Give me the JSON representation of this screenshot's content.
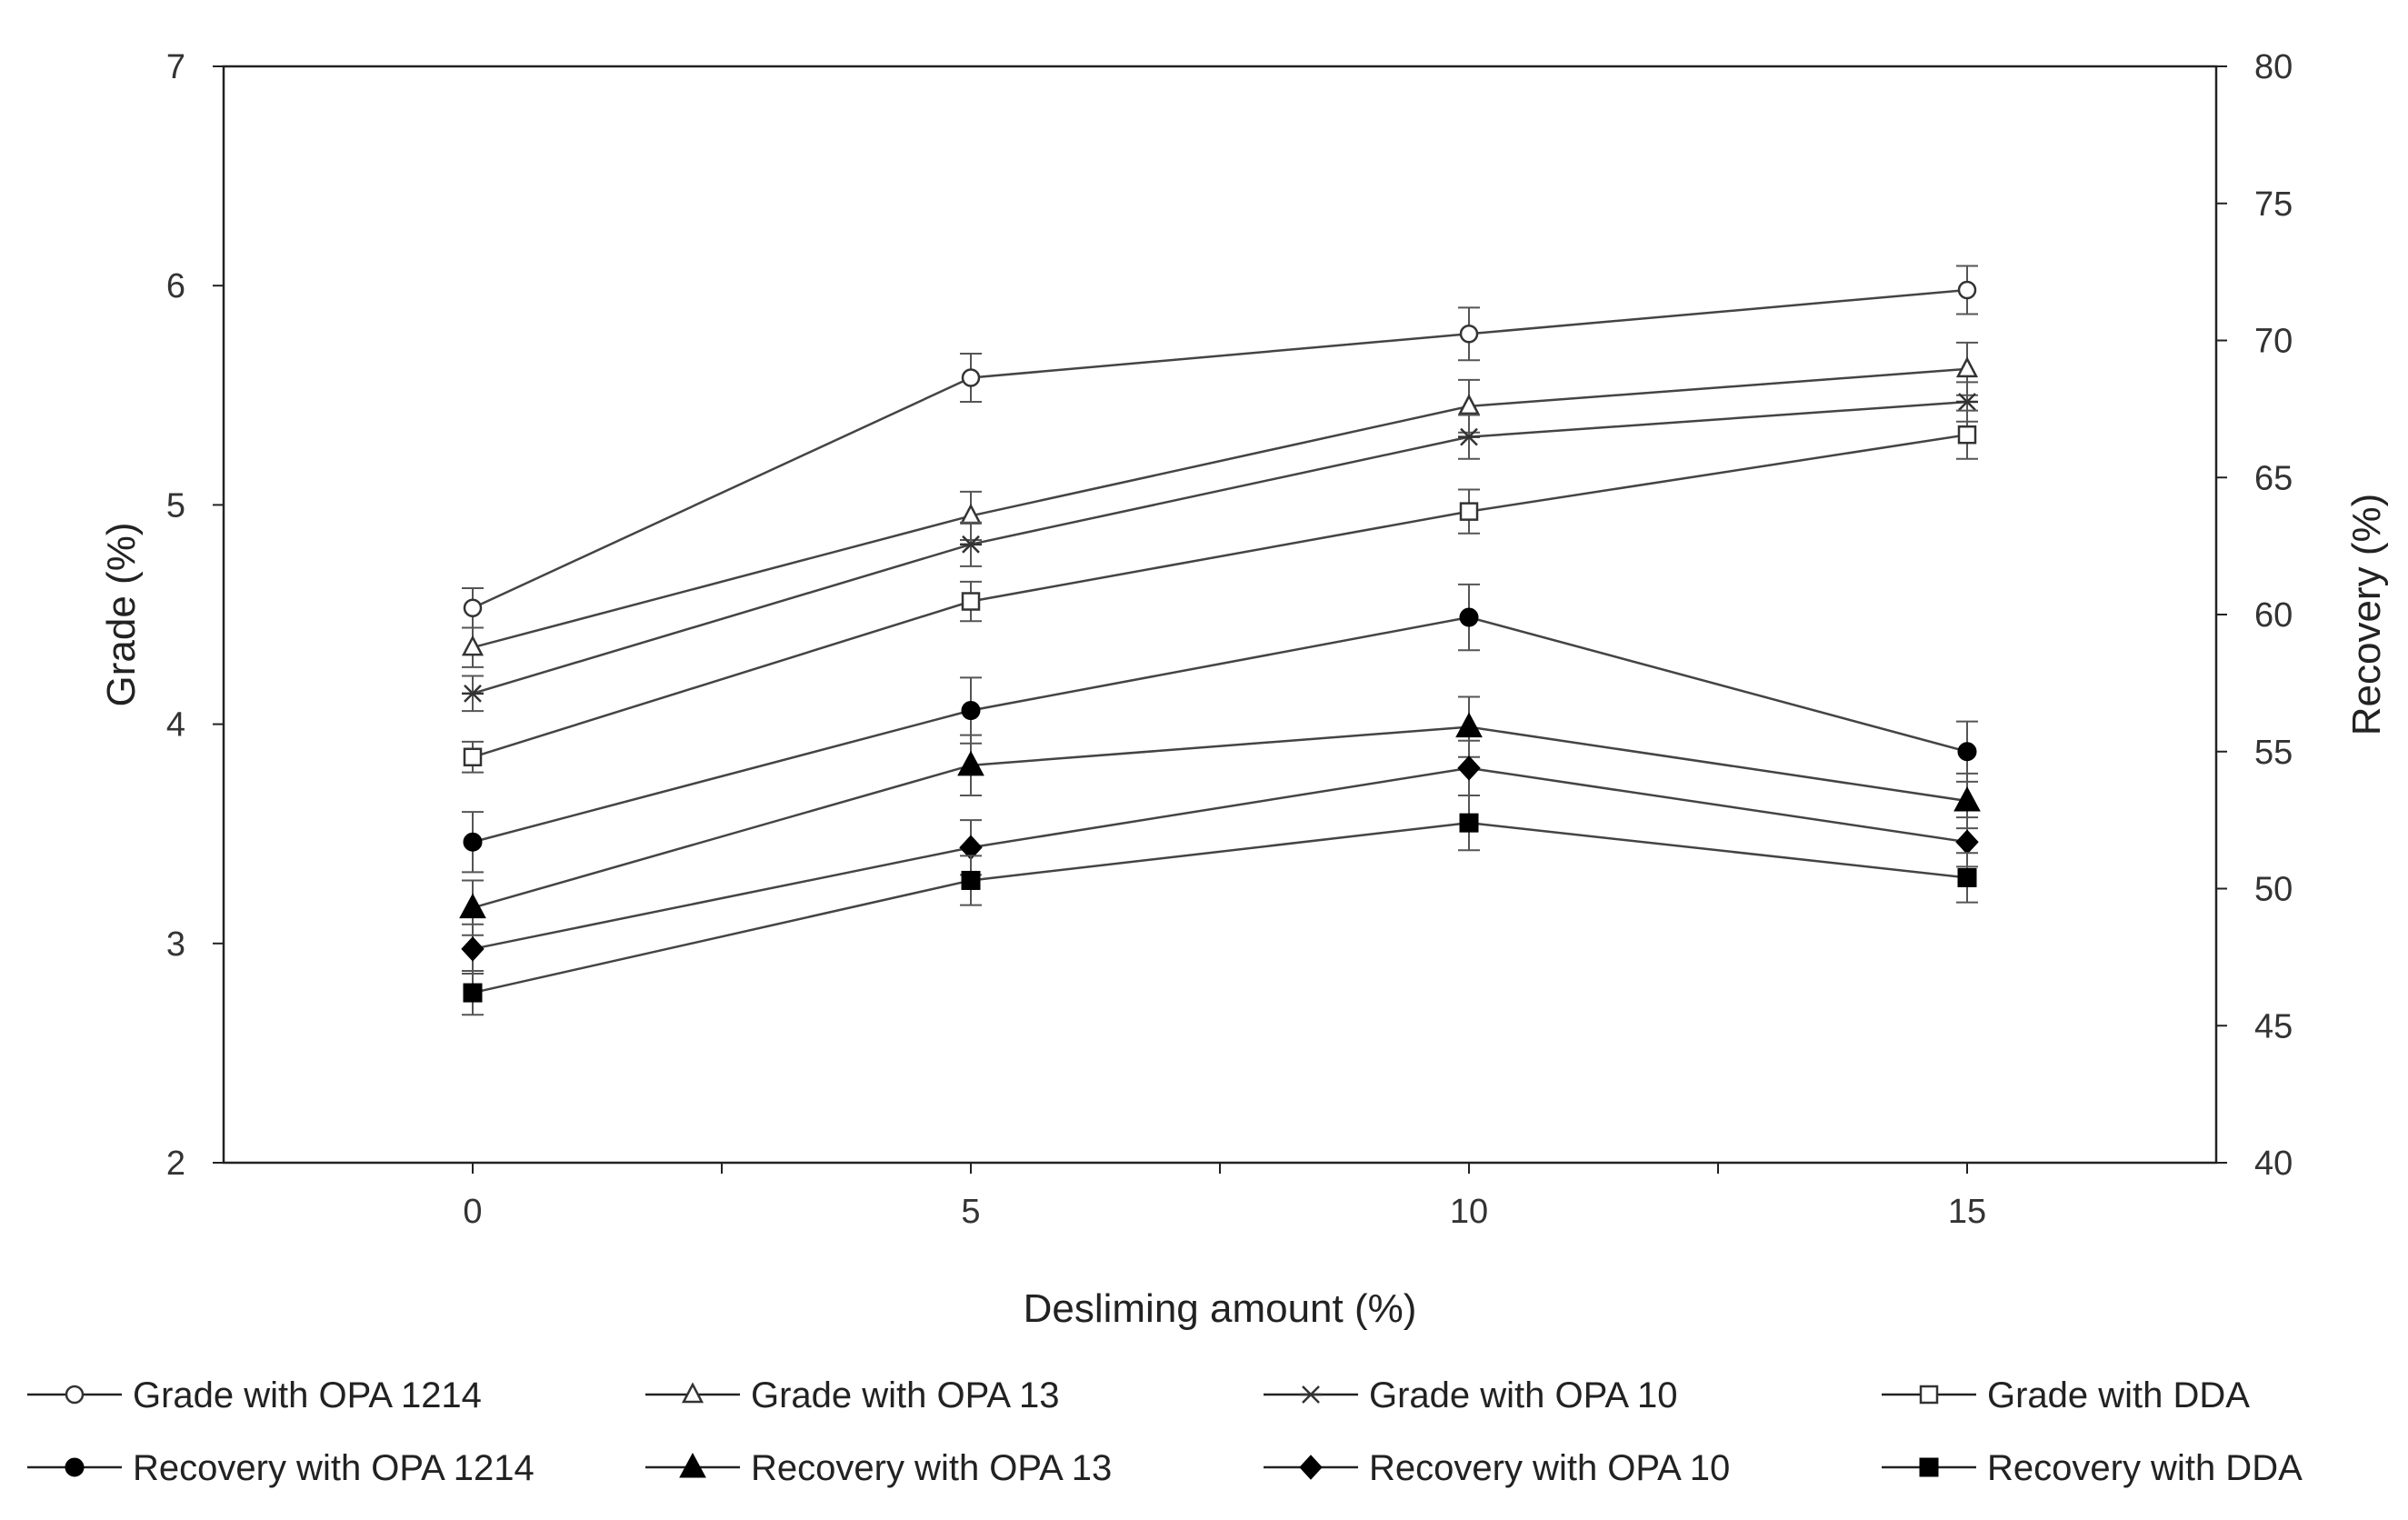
{
  "chart_data": {
    "type": "line",
    "title": "",
    "xlabel": "Desliming amount (%)",
    "ylabel": "Grade  (%)",
    "y2label": "Recovery (%)",
    "x": [
      0,
      5,
      10,
      15
    ],
    "x_tick_labels": [
      "0",
      "5",
      "10",
      "15"
    ],
    "xlim": [
      -2.5,
      17.5
    ],
    "ylim": [
      2,
      7
    ],
    "y_ticks": [
      2,
      3,
      4,
      5,
      6,
      7
    ],
    "y2lim": [
      40,
      80
    ],
    "y2_ticks": [
      40,
      45,
      50,
      55,
      60,
      65,
      70,
      75,
      80
    ],
    "grid": false,
    "legend_position": "bottom",
    "series": [
      {
        "name": "Grade with OPA 1214",
        "axis": "left",
        "marker": "circle-open",
        "values": [
          4.53,
          5.58,
          5.78,
          5.98
        ],
        "errors": [
          0.09,
          0.11,
          0.12,
          0.11
        ]
      },
      {
        "name": "Grade with OPA 13",
        "axis": "left",
        "marker": "triangle-open",
        "values": [
          4.35,
          4.95,
          5.45,
          5.62
        ],
        "errors": [
          0.09,
          0.11,
          0.12,
          0.12
        ]
      },
      {
        "name": "Grade with OPA 10",
        "axis": "left",
        "marker": "star",
        "values": [
          4.14,
          4.82,
          5.31,
          5.47
        ],
        "errors": [
          0.08,
          0.1,
          0.1,
          0.09
        ]
      },
      {
        "name": "Grade with DDA",
        "axis": "left",
        "marker": "square-open",
        "values": [
          3.85,
          4.56,
          4.97,
          5.32
        ],
        "errors": [
          0.07,
          0.09,
          0.1,
          0.11
        ]
      },
      {
        "name": "Recovery with OPA 1214",
        "axis": "right",
        "marker": "circle-filled",
        "values": [
          51.7,
          56.5,
          59.9,
          55.0
        ],
        "errors": [
          1.1,
          1.2,
          1.2,
          1.1
        ]
      },
      {
        "name": "Recovery with OPA 13",
        "axis": "right",
        "marker": "triangle-filled",
        "values": [
          49.3,
          54.5,
          55.9,
          53.2
        ],
        "errors": [
          1.0,
          1.1,
          1.1,
          1.0
        ]
      },
      {
        "name": "Recovery with OPA 10",
        "axis": "right",
        "marker": "diamond-filled",
        "values": [
          47.8,
          51.5,
          54.4,
          51.7
        ],
        "errors": [
          0.9,
          1.0,
          1.0,
          0.9
        ]
      },
      {
        "name": "Recovery with DDA",
        "axis": "right",
        "marker": "square-filled",
        "values": [
          46.2,
          50.3,
          52.4,
          50.4
        ],
        "errors": [
          0.8,
          0.9,
          1.0,
          0.9
        ]
      }
    ]
  }
}
